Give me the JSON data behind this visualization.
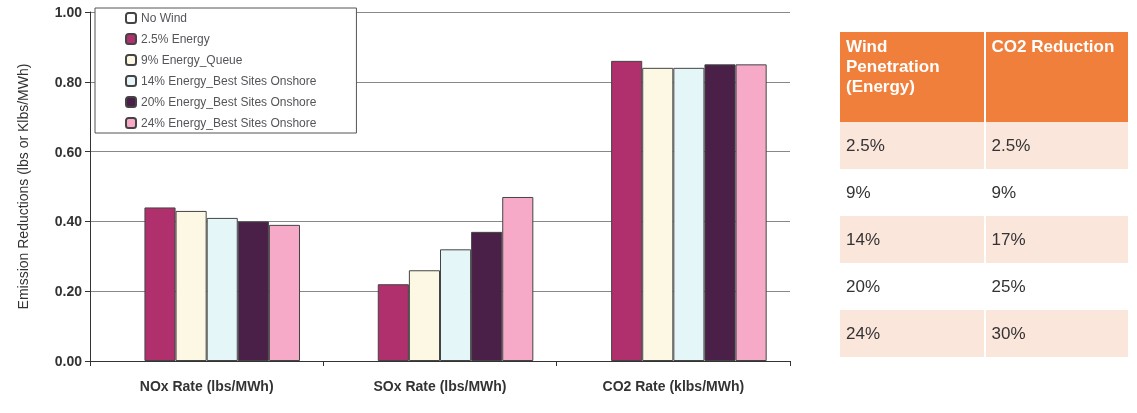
{
  "chart_data": [
    {
      "type": "bar",
      "ylabel": "Emission Reductions (lbs or Klbs/MWh)",
      "categories": [
        "NOx Rate (lbs/MWh)",
        "SOx Rate (lbs/MWh)",
        "CO2 Rate (klbs/MWh)"
      ],
      "series": [
        {
          "name": "No Wind",
          "color": "#ffffff",
          "values": [
            0,
            0,
            0
          ]
        },
        {
          "name": "2.5% Energy",
          "color": "#b0306e",
          "values": [
            0.44,
            0.22,
            0.86
          ]
        },
        {
          "name": "9% Energy_Queue",
          "color": "#fdf8e4",
          "values": [
            0.43,
            0.26,
            0.84
          ]
        },
        {
          "name": "14% Energy_Best Sites Onshore",
          "color": "#e4f6f8",
          "values": [
            0.41,
            0.32,
            0.84
          ]
        },
        {
          "name": "20% Energy_Best Sites Onshore",
          "color": "#4a2048",
          "values": [
            0.4,
            0.37,
            0.85
          ]
        },
        {
          "name": "24% Energy_Best Sites Onshore",
          "color": "#f7aac8",
          "values": [
            0.39,
            0.47,
            0.85
          ]
        }
      ],
      "ylim": [
        0,
        1
      ],
      "yticks": [
        {
          "value": 0,
          "label": "0.00"
        },
        {
          "value": 0.2,
          "label": "0.20"
        },
        {
          "value": 0.4,
          "label": "0.40"
        },
        {
          "value": 0.6,
          "label": "0.60"
        },
        {
          "value": 0.8,
          "label": "0.80"
        },
        {
          "value": 1,
          "label": "1.00"
        }
      ],
      "grid": "y",
      "legend": "top left"
    },
    {
      "type": "other",
      "categories": [
        "Wind Penetration (Energy)",
        "CO2 Reduction"
      ],
      "annotations": [
        "2.5%",
        "2.5%",
        "9%",
        "9%",
        "14%",
        "17%",
        "20%",
        "25%",
        "24%",
        "30%"
      ]
    }
  ]
}
